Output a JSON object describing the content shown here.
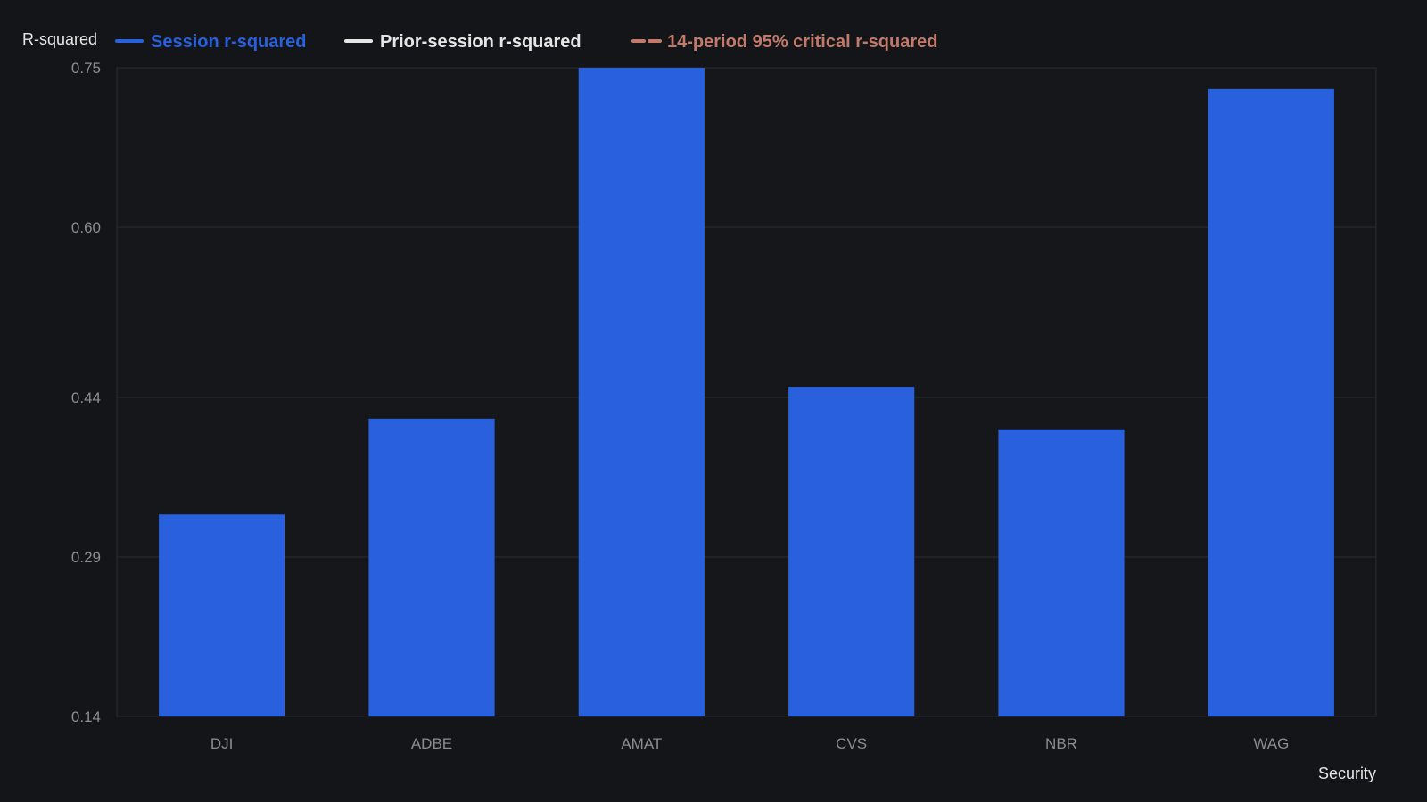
{
  "chart_data": {
    "type": "bar",
    "title": "",
    "ylabel": "R-squared",
    "xlabel": "Security",
    "categories": [
      "DJI",
      "ADBE",
      "AMAT",
      "CVS",
      "NBR",
      "WAG"
    ],
    "ylim": [
      0.14,
      0.75
    ],
    "yticks": [
      "0.14",
      "0.29",
      "0.44",
      "0.60",
      "0.75"
    ],
    "grid": true,
    "legend_position": "top-left",
    "series": [
      {
        "name": "Session r-squared",
        "values": [
          0.33,
          0.42,
          0.75,
          0.45,
          0.41,
          0.73
        ],
        "color": "#2860DD",
        "style": "bar"
      }
    ],
    "legend": [
      {
        "label": "Session r-squared",
        "color": "#2860DD",
        "style": "solid"
      },
      {
        "label": "Prior-session r-squared",
        "color": "#E6E6E6",
        "style": "solid"
      },
      {
        "label": "14-period 95% critical r-squared",
        "color": "#C27A6A",
        "style": "dashed"
      }
    ],
    "colors": {
      "background": "#141519",
      "plot_background": "#16171B",
      "gridline": "#2A2C31",
      "axis_text": "#8A8D93",
      "label_text": "#E6E6E6"
    }
  }
}
